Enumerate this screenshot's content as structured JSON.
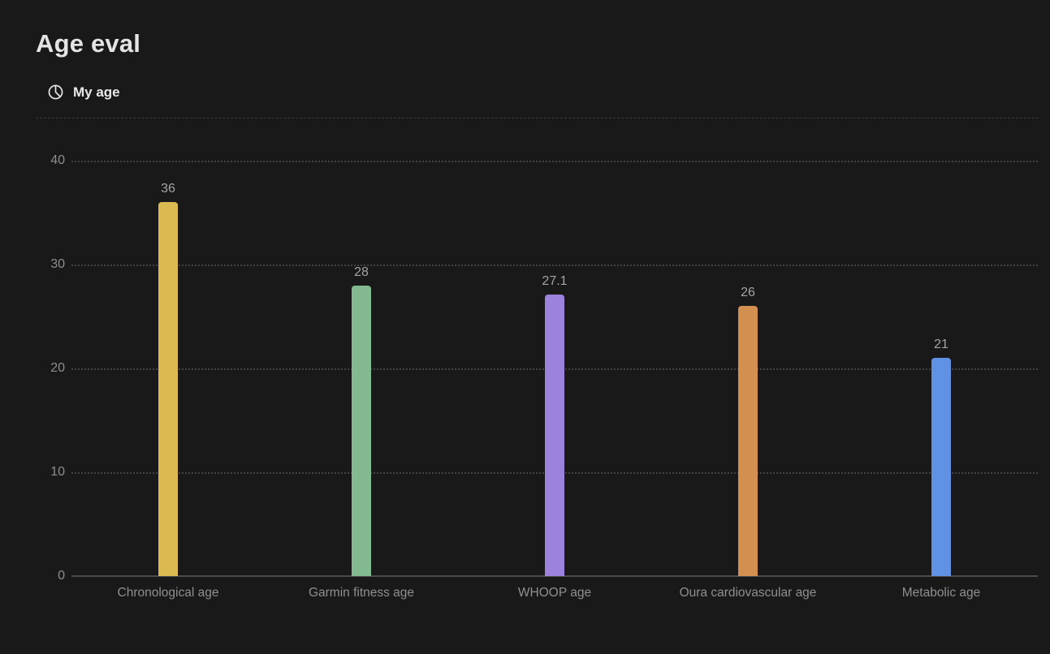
{
  "page": {
    "title": "Age eval"
  },
  "legend": {
    "icon": "pie-chart-icon",
    "label": "My age"
  },
  "colors": {
    "background": "#191919",
    "title_text": "#e4e4e4",
    "legend_text": "#e8e8e8",
    "axis_text": "#8d8d8d",
    "category_text": "#8f8f8f",
    "value_text": "#a4a4a4",
    "gridline": "#424242",
    "axis_line": "#4a4a4a",
    "divider": "#3a3a3a"
  },
  "chart_data": {
    "type": "bar",
    "title": "Age eval",
    "series_name": "My age",
    "categories": [
      "Chronological age",
      "Garmin fitness age",
      "WHOOP age",
      "Oura cardiovascular age",
      "Metabolic age"
    ],
    "values": [
      36,
      28,
      27.1,
      26,
      21
    ],
    "value_labels": [
      "36",
      "28",
      "27.1",
      "26",
      "21"
    ],
    "bar_colors": [
      "#dcba52",
      "#82b98f",
      "#9c82dd",
      "#d28f50",
      "#6191e2"
    ],
    "xlabel": "",
    "ylabel": "",
    "ylim": [
      0,
      40
    ],
    "yticks": [
      0,
      10,
      20,
      30,
      40
    ],
    "grid": "horizontal-dotted",
    "legend_position": "top-left"
  }
}
